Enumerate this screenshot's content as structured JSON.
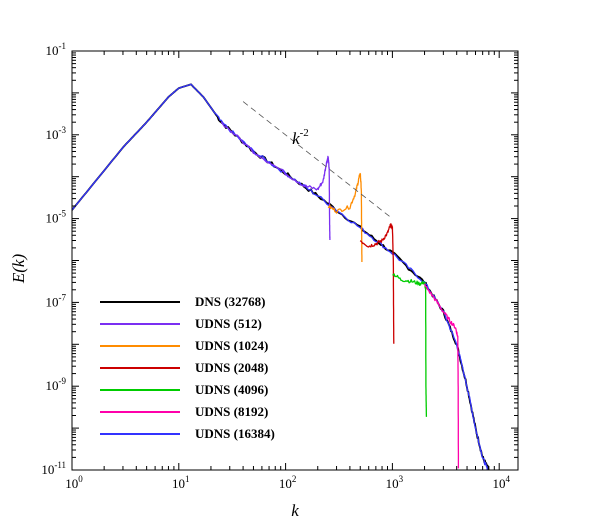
{
  "chart_data": {
    "type": "line",
    "xscale": "log",
    "yscale": "log",
    "xlabel": "k",
    "ylabel": "E(k)",
    "xlim": [
      1,
      15000
    ],
    "ylim": [
      1e-11,
      0.1
    ],
    "x_ticks": [
      {
        "base": "10",
        "exp": "0",
        "value": 1
      },
      {
        "base": "10",
        "exp": "1",
        "value": 10
      },
      {
        "base": "10",
        "exp": "2",
        "value": 100
      },
      {
        "base": "10",
        "exp": "3",
        "value": 1000
      },
      {
        "base": "10",
        "exp": "4",
        "value": 10000
      }
    ],
    "y_ticks": [
      {
        "base": "10",
        "exp": "-11",
        "value": 1e-11
      },
      {
        "base": "10",
        "exp": "-9",
        "value": 1e-09
      },
      {
        "base": "10",
        "exp": "-7",
        "value": 1e-07
      },
      {
        "base": "10",
        "exp": "-5",
        "value": 1e-05
      },
      {
        "base": "10",
        "exp": "-3",
        "value": 0.001
      },
      {
        "base": "10",
        "exp": "-1",
        "value": 0.1
      }
    ],
    "grid": false,
    "legend_position": "bottom-left",
    "reference_line": {
      "label_base": "k",
      "label_exp": "-2",
      "style": "dashed",
      "points": [
        [
          40,
          0.0062
        ],
        [
          1000,
          1e-05
        ]
      ]
    },
    "series": [
      {
        "name": "DNS (32768)",
        "color": "#000000",
        "x": [
          1,
          3,
          5,
          8,
          10,
          13,
          17,
          25,
          50,
          100,
          200,
          500,
          1000,
          2000,
          3000,
          4000,
          5000,
          6000,
          7000,
          8000
        ],
        "y": [
          1.6e-05,
          0.0005,
          0.002,
          0.008,
          0.013,
          0.016,
          0.008,
          0.002,
          0.0004,
          0.00012,
          3.5e-05,
          6e-06,
          1.5e-06,
          3e-07,
          6e-08,
          1e-08,
          1e-09,
          1e-10,
          2e-11,
          1e-11
        ]
      },
      {
        "name": "UDNS (512)",
        "color": "#7b2ff2",
        "x": [
          25,
          50,
          100,
          150,
          200,
          225,
          240,
          250,
          256,
          258,
          260
        ],
        "y": [
          0.002,
          0.0004,
          0.00012,
          6e-05,
          5e-05,
          8e-05,
          0.0002,
          0.0003,
          0.00015,
          1e-05,
          3e-06
        ]
      },
      {
        "name": "UDNS (1024)",
        "color": "#ff8c00",
        "x": [
          250,
          300,
          400,
          450,
          480,
          500,
          512,
          515,
          518
        ],
        "y": [
          2e-05,
          1.5e-05,
          1.9e-05,
          4e-05,
          8e-05,
          0.00012,
          5e-05,
          5e-06,
          1e-06
        ]
      },
      {
        "name": "UDNS (2048)",
        "color": "#cc0000",
        "x": [
          500,
          600,
          700,
          800,
          900,
          960,
          1000,
          1020,
          1030
        ],
        "y": [
          3e-06,
          2.2e-06,
          2.5e-06,
          3e-06,
          4.5e-06,
          7e-06,
          6e-06,
          1e-06,
          1e-08
        ]
      },
      {
        "name": "UDNS (4096)",
        "color": "#00cc00",
        "x": [
          1000,
          1200,
          1500,
          1800,
          2000,
          2048,
          2060,
          2080
        ],
        "y": [
          5e-07,
          3.5e-07,
          3.2e-07,
          2.8e-07,
          3e-07,
          2e-07,
          1e-09,
          2e-10
        ]
      },
      {
        "name": "UDNS (8192)",
        "color": "#ff00aa",
        "x": [
          2000,
          2500,
          3000,
          3500,
          3900,
          4096,
          4130,
          4150
        ],
        "y": [
          2.6e-07,
          1.2e-07,
          6e-08,
          3.5e-08,
          2.5e-08,
          1.5e-08,
          1e-09,
          1e-11
        ]
      },
      {
        "name": "UDNS (16384)",
        "color": "#3333ff",
        "x": [
          1,
          3,
          5,
          8,
          10,
          13,
          17,
          25,
          50,
          100,
          200,
          500,
          1000,
          2000,
          3000,
          4000,
          5000,
          6000,
          7000,
          7800
        ],
        "y": [
          1.6e-05,
          0.0005,
          0.002,
          0.008,
          0.013,
          0.016,
          0.008,
          0.002,
          0.0004,
          0.00012,
          3.5e-05,
          6e-06,
          1.5e-06,
          3e-07,
          6e-08,
          1e-08,
          1e-09,
          1e-10,
          2e-11,
          1e-11
        ]
      }
    ]
  }
}
